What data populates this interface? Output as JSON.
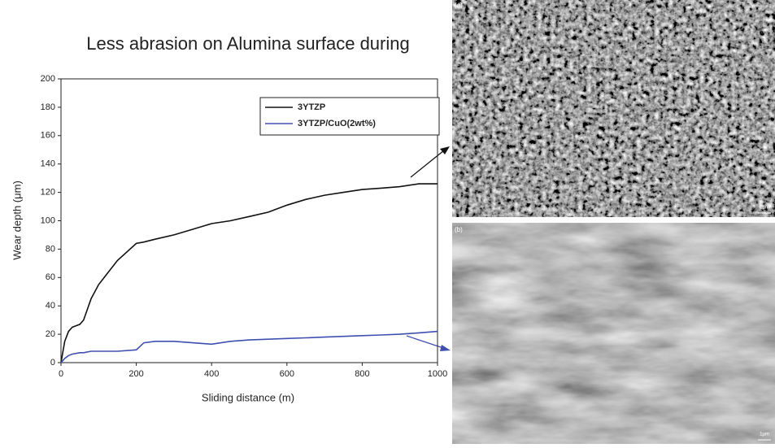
{
  "chart_data": {
    "type": "line",
    "title": "Less abrasion on Alumina surface during",
    "x_label": "Sliding distance (m)",
    "y_label": "Wear depth (μm)",
    "x": [
      0,
      10,
      20,
      30,
      50,
      60,
      80,
      100,
      150,
      200,
      220,
      250,
      300,
      350,
      400,
      450,
      500,
      550,
      600,
      650,
      700,
      750,
      800,
      850,
      900,
      950,
      1000
    ],
    "series": [
      {
        "name": "3YTZP",
        "color": "#111111",
        "values": [
          0,
          15,
          22,
          25,
          27,
          30,
          45,
          55,
          72,
          84,
          85,
          87,
          90,
          94,
          98,
          100,
          103,
          106,
          111,
          115,
          118,
          120,
          122,
          123,
          124,
          126,
          126
        ]
      },
      {
        "name": "3YTZP/CuO(2wt%)",
        "color": "#3f4fb0",
        "values": [
          0,
          3,
          5,
          6,
          7,
          7,
          8,
          8,
          8,
          9,
          14,
          15,
          15,
          14,
          13,
          15,
          16,
          16.5,
          17,
          17.5,
          18,
          18.5,
          19,
          19.5,
          20,
          21,
          22
        ]
      }
    ],
    "xlim": [
      0,
      1000
    ],
    "xticks": [
      0,
      200,
      400,
      600,
      800,
      1000
    ],
    "ylim": [
      0,
      200
    ],
    "yticks": [
      0,
      20,
      40,
      60,
      80,
      100,
      120,
      140,
      160,
      180,
      200
    ],
    "legend": "upper right"
  },
  "images": [
    {
      "label": "(a)",
      "scale": "1µm"
    },
    {
      "label": "(b)",
      "scale": "1µm"
    }
  ]
}
